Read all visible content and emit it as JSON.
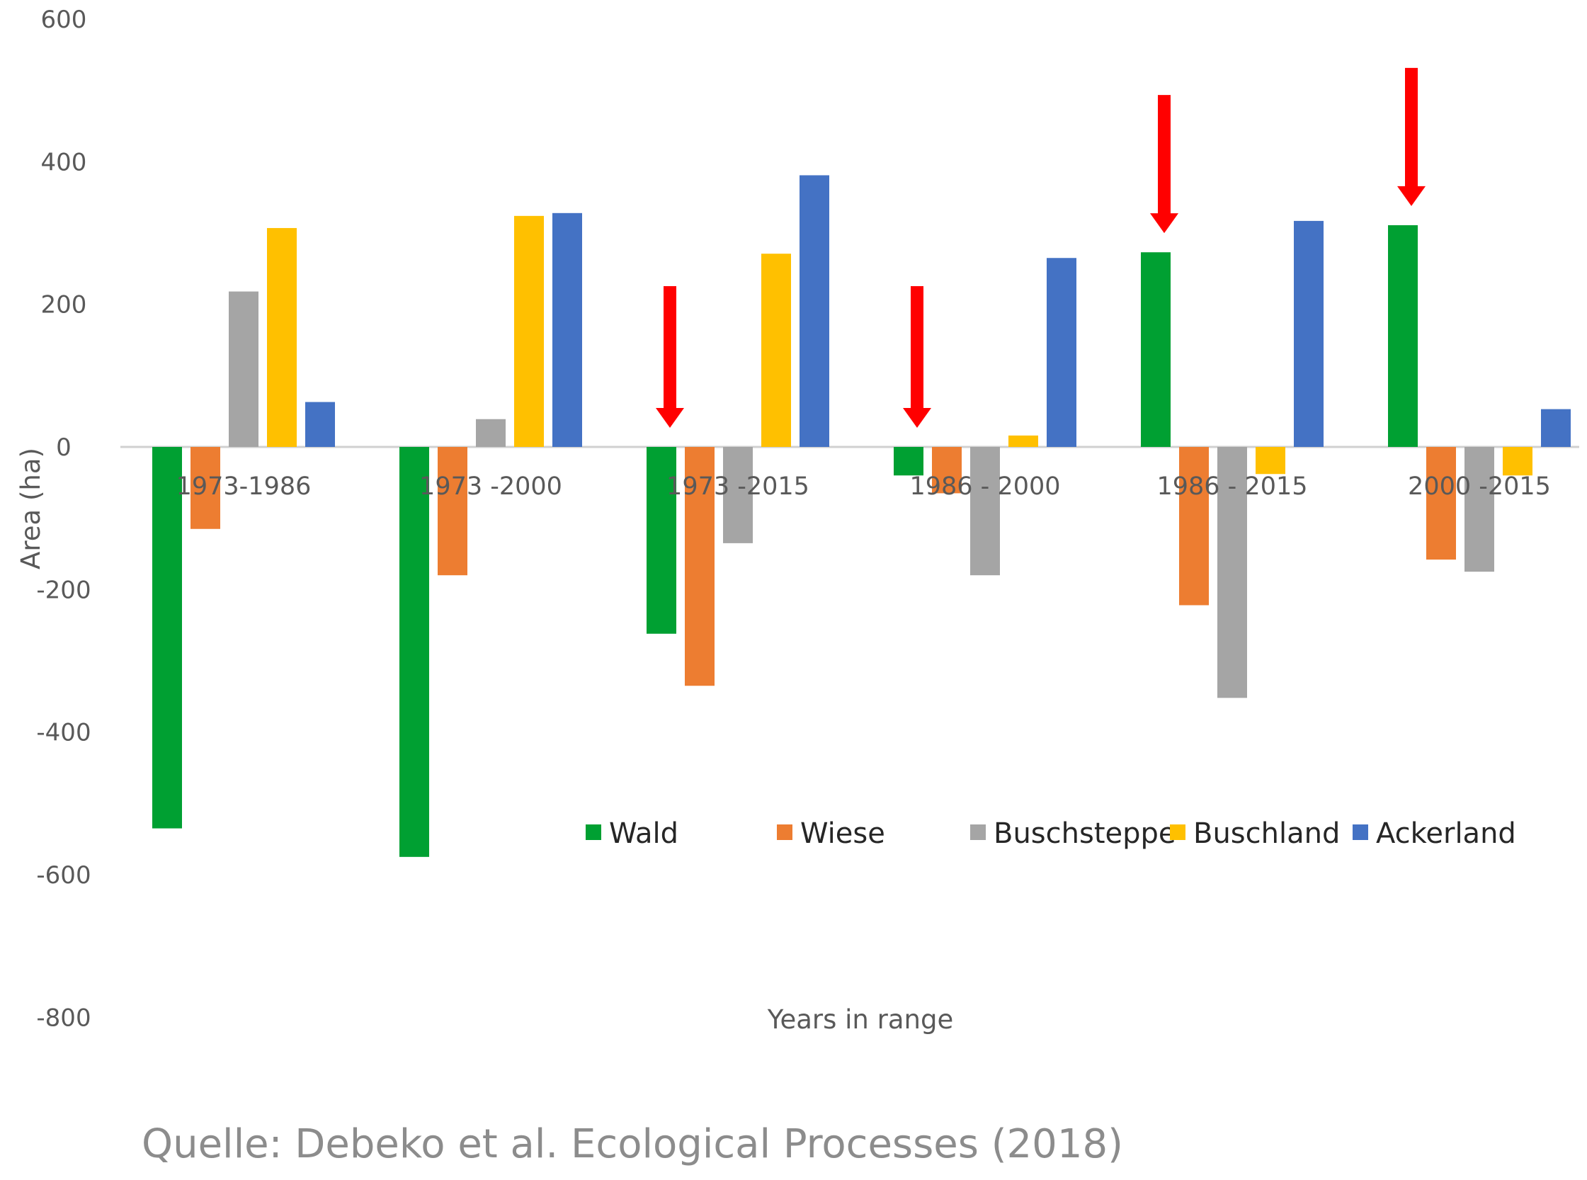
{
  "chart_data": {
    "type": "bar",
    "title": "",
    "xlabel": "Years in range",
    "ylabel": "Area (ha)",
    "ylim": [
      -800,
      600
    ],
    "yticks": [
      600,
      400,
      200,
      0,
      -200,
      -400,
      -600,
      -800
    ],
    "grid": false,
    "legend_position": "bottom-right",
    "categories": [
      "1973-1986",
      "1973 -2000",
      "1973 -2015",
      "1986 - 2000",
      "1986 - 2015",
      "2000 -2015"
    ],
    "series": [
      {
        "name": "Wald",
        "color": "#00A032",
        "values": [
          -535,
          -575,
          -262,
          -40,
          273,
          311
        ]
      },
      {
        "name": "Wiese",
        "color": "#ED7D31",
        "values": [
          -115,
          -180,
          -335,
          -65,
          -222,
          -158
        ]
      },
      {
        "name": "Buschsteppe",
        "color": "#A5A5A5",
        "values": [
          218,
          39,
          -135,
          -180,
          -352,
          -175
        ]
      },
      {
        "name": "Buschland",
        "color": "#FFC000",
        "values": [
          307,
          324,
          271,
          16,
          -38,
          -40
        ]
      },
      {
        "name": "Ackerland",
        "color": "#4472C4",
        "values": [
          63,
          328,
          381,
          265,
          317,
          53
        ]
      }
    ],
    "annotations": [
      {
        "type": "arrow",
        "color": "#FF0000",
        "category": "1973 -2015",
        "series": "Wald"
      },
      {
        "type": "arrow",
        "color": "#FF0000",
        "category": "1986 - 2000",
        "series": "Wald"
      },
      {
        "type": "arrow",
        "color": "#FF0000",
        "category": "1986 - 2015",
        "series": "Wald"
      },
      {
        "type": "arrow",
        "color": "#FF0000",
        "category": "2000 -2015",
        "series": "Wald"
      }
    ]
  },
  "source": "Quelle: Debeko et al. Ecological Processes (2018)"
}
